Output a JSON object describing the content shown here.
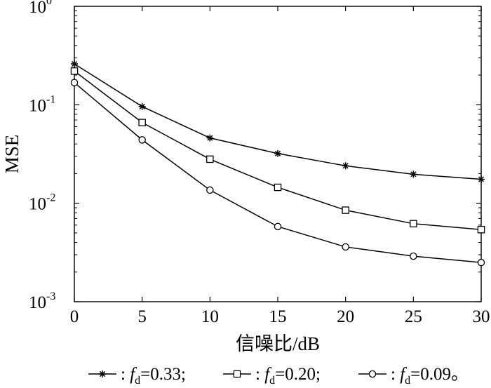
{
  "chart_data": {
    "type": "line",
    "title": "",
    "xlabel": "信噪比/dB",
    "ylabel": "MSE",
    "xscale": "linear",
    "yscale": "log",
    "xlim": [
      0,
      30
    ],
    "ylim": [
      0.001,
      1
    ],
    "xticks": [
      0,
      5,
      10,
      15,
      20,
      25,
      30
    ],
    "yticks": [
      {
        "value": 1,
        "base": "10",
        "exp": "0"
      },
      {
        "value": 0.1,
        "base": "10",
        "exp": "-1"
      },
      {
        "value": 0.01,
        "base": "10",
        "exp": "-2"
      },
      {
        "value": 0.001,
        "base": "10",
        "exp": "-3"
      }
    ],
    "grid": false,
    "legend_position": "bottom",
    "x": [
      0,
      5,
      10,
      15,
      20,
      25,
      30
    ],
    "series": [
      {
        "marker": "asterisk",
        "legend_sym": "—✱— : ",
        "legend_f": "f",
        "legend_sub": "d",
        "legend_value": "=0.33;",
        "values": [
          0.26,
          0.096,
          0.046,
          0.032,
          0.024,
          0.0197,
          0.0175
        ]
      },
      {
        "marker": "square",
        "legend_sym": "—□— : ",
        "legend_f": "f",
        "legend_sub": "d",
        "legend_value": "=0.20;",
        "values": [
          0.22,
          0.066,
          0.028,
          0.0145,
          0.0085,
          0.0062,
          0.0054
        ]
      },
      {
        "marker": "circle",
        "legend_sym": "—○— : ",
        "legend_f": "f",
        "legend_sub": "d",
        "legend_value": "=0.09。",
        "values": [
          0.168,
          0.044,
          0.0136,
          0.0058,
          0.0036,
          0.0029,
          0.0025
        ]
      }
    ],
    "colors": {
      "line": "#000000",
      "axis": "#000000",
      "background": "#ffffff"
    }
  }
}
